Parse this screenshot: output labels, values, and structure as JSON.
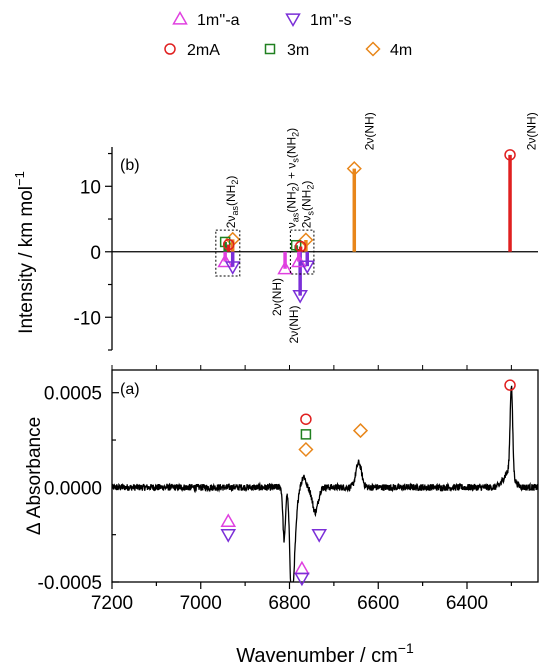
{
  "legend": [
    {
      "label": "1m''-a",
      "marker": "triangle-up",
      "color": "#e040e0"
    },
    {
      "label": "1m''-s",
      "marker": "triangle-down",
      "color": "#7b2fd8"
    },
    {
      "label": "2mA",
      "marker": "circle",
      "color": "#e02020"
    },
    {
      "label": "3m",
      "marker": "square",
      "color": "#208020"
    },
    {
      "label": "4m",
      "marker": "diamond",
      "color": "#e8861a"
    }
  ],
  "xlabel": "Wavenumber / cm",
  "xlabel_sup": "−1",
  "xtick_labels": [
    "7200",
    "7000",
    "6800",
    "6600",
    "6400"
  ],
  "chart_data": [
    {
      "type": "bar",
      "panel_label": "(b)",
      "ylabel": "Intensity / km mol",
      "ylabel_sup": "−1",
      "xlim": [
        7200,
        6240
      ],
      "ylim": [
        -15,
        16
      ],
      "yticks": [
        10,
        0,
        -10
      ],
      "ytick_labels": [
        "10",
        "0",
        "-10"
      ],
      "sticks": [
        {
          "series": "2mA",
          "x": 6303,
          "y": 14.8,
          "color": "#e02020"
        },
        {
          "series": "4m",
          "x": 6654,
          "y": 12.7,
          "color": "#e8861a"
        },
        {
          "series": "4m",
          "x": 6928,
          "y": 1.9,
          "color": "#e8861a"
        },
        {
          "series": "4m",
          "x": 6763,
          "y": 1.8,
          "color": "#e8861a"
        },
        {
          "series": "3m",
          "x": 6945,
          "y": 1.5,
          "color": "#208020"
        },
        {
          "series": "3m",
          "x": 6785,
          "y": 1.0,
          "color": "#208020"
        },
        {
          "series": "2mA",
          "x": 6937,
          "y": 1.1,
          "color": "#e02020"
        },
        {
          "series": "2mA",
          "x": 6775,
          "y": 0.8,
          "color": "#e02020"
        },
        {
          "series": "1m''-a",
          "x": 6945,
          "y": -1.5,
          "color": "#e040e0"
        },
        {
          "series": "1m''-s",
          "x": 6928,
          "y": -2.3,
          "color": "#7b2fd8"
        },
        {
          "series": "1m''-a",
          "x": 6810,
          "y": -2.6,
          "color": "#e040e0"
        },
        {
          "series": "1m''-s",
          "x": 6776,
          "y": -6.7,
          "color": "#7b2fd8"
        },
        {
          "series": "1m''-a",
          "x": 6779,
          "y": -1.5,
          "color": "#e040e0"
        },
        {
          "series": "1m''-s",
          "x": 6760,
          "y": -2.2,
          "color": "#7b2fd8"
        }
      ],
      "boxes": [
        {
          "x0": 6966,
          "x1": 6912,
          "y0": -3.7,
          "y1": 3.3
        },
        {
          "x0": 6798,
          "x1": 6745,
          "y0": -3.4,
          "y1": 3.3
        }
      ],
      "annotations": [
        {
          "main": "2ν",
          "sub": "as",
          "rest": "(NH",
          "sub2": "2",
          "close": ")",
          "x": 6932,
          "y": 3.6
        },
        {
          "main": "ν",
          "sub": "as",
          "rest": "(NH",
          "sub2": "2",
          "close": ") + ν",
          "sub3": "s",
          "rest2": "(NH",
          "sub4": "2",
          "end": ")",
          "x": 6795,
          "y": 3.6
        },
        {
          "main": "2ν",
          "sub": "s",
          "rest": "(NH",
          "sub2": "2",
          "close": ")",
          "x": 6762,
          "y": 3.6
        },
        {
          "text": "2ν(NH)",
          "x": 6620,
          "y": 15.5
        },
        {
          "text": "2ν(NH)",
          "x": 6255,
          "y": 15.5
        },
        {
          "text": "2ν(NH)",
          "x": 6828,
          "y": -4.0
        },
        {
          "text": "2ν(NH)",
          "x": 6790,
          "y": -8.2
        }
      ]
    },
    {
      "type": "line",
      "panel_label": "(a)",
      "ylabel": "Δ Absorbance",
      "xlim": [
        7200,
        6240
      ],
      "ylim": [
        -0.0005,
        0.00062
      ],
      "yticks": [
        0.0005,
        0.0,
        -0.0005
      ],
      "ytick_labels": [
        "0.0005",
        "0.0000",
        "-0.0005"
      ],
      "baseline": 0.0,
      "noise": 1.8e-05,
      "features": [
        {
          "center": 6795,
          "amplitude": -0.00059,
          "width": 6
        },
        {
          "center": 6812,
          "amplitude": -0.00028,
          "width": 4
        },
        {
          "center": 6787,
          "amplitude": -0.0002,
          "width": 6
        },
        {
          "center": 6768,
          "amplitude": 6e-05,
          "width": 6
        },
        {
          "center": 6742,
          "amplitude": -0.00013,
          "width": 9
        },
        {
          "center": 6644,
          "amplitude": 0.00013,
          "width": 9
        },
        {
          "center": 6300,
          "amplitude": 0.00047,
          "width": 4
        },
        {
          "center": 6306,
          "amplitude": 8e-05,
          "width": 16
        }
      ],
      "markers": [
        {
          "series": "2mA",
          "x": 6303,
          "y": 0.00054,
          "color": "#e02020"
        },
        {
          "series": "4m",
          "x": 6640,
          "y": 0.0003,
          "color": "#e8861a"
        },
        {
          "series": "2mA",
          "x": 6763,
          "y": 0.00036,
          "color": "#e02020"
        },
        {
          "series": "3m",
          "x": 6763,
          "y": 0.00028,
          "color": "#208020"
        },
        {
          "series": "4m",
          "x": 6763,
          "y": 0.0002,
          "color": "#e8861a"
        },
        {
          "series": "1m''-a",
          "x": 6938,
          "y": -0.00018,
          "color": "#e040e0"
        },
        {
          "series": "1m''-s",
          "x": 6938,
          "y": -0.00025,
          "color": "#7b2fd8"
        },
        {
          "series": "1m''-s",
          "x": 6733,
          "y": -0.00025,
          "color": "#7b2fd8"
        },
        {
          "series": "1m''-a",
          "x": 6772,
          "y": -0.00043,
          "color": "#e040e0"
        },
        {
          "series": "1m''-s",
          "x": 6772,
          "y": -0.00048,
          "color": "#7b2fd8"
        }
      ]
    }
  ]
}
